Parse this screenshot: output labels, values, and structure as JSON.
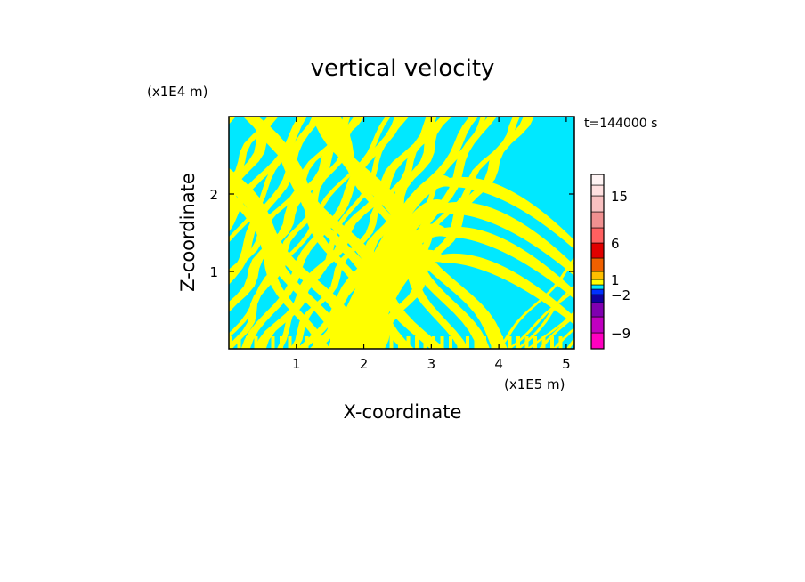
{
  "chart_data": {
    "type": "heatmap",
    "title": "vertical velocity",
    "xlabel": "X-coordinate",
    "ylabel": "Z-coordinate",
    "x_unit": "(x1E5 m)",
    "y_unit": "(x1E4 m)",
    "time_label": "t=144000 s",
    "xlim": [
      0,
      5.12
    ],
    "ylim": [
      0,
      3.0
    ],
    "xticks": [
      1,
      2,
      3,
      4,
      5
    ],
    "yticks": [
      1,
      2
    ],
    "field_colors": {
      "negative": "#00e8ff",
      "positive": "#ffff00"
    },
    "colorbar": {
      "levels": [
        -12,
        -9,
        -6,
        -4,
        -2,
        -1,
        0,
        1,
        2,
        4,
        6,
        9,
        12,
        15,
        18,
        21
      ],
      "colors": [
        "#ff00c0",
        "#c000c0",
        "#8000b0",
        "#1000a0",
        "#0030ff",
        "#00e8ff",
        "#ffff00",
        "#ffc000",
        "#f06000",
        "#e00000",
        "#ff6060",
        "#f09090",
        "#f8c0c0",
        "#ffe0e0",
        "#fff4f4"
      ],
      "labels": [
        {
          "value": -9,
          "text": "−9"
        },
        {
          "value": -2,
          "text": "−2"
        },
        {
          "value": 1,
          "text": "1"
        },
        {
          "value": 6,
          "text": "6"
        },
        {
          "value": 15,
          "text": "15"
        }
      ]
    }
  }
}
